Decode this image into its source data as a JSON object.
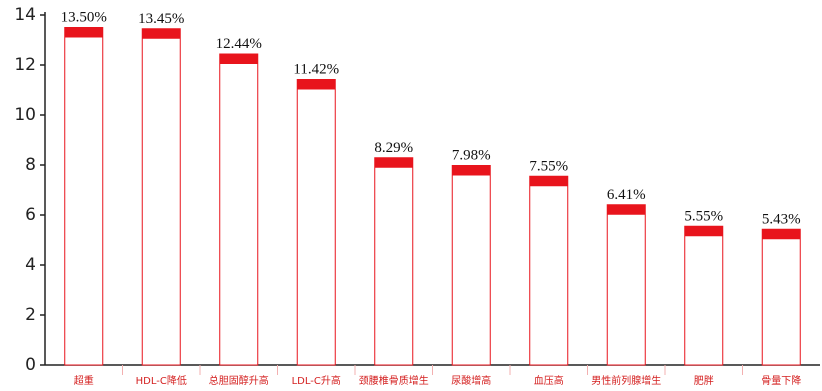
{
  "chart_data": {
    "type": "bar",
    "categories": [
      "超重",
      "HDL-C降低",
      "总胆固醇升高",
      "LDL-C升高",
      "颈腰椎骨质增生",
      "尿酸增高",
      "血压高",
      "男性前列腺增生",
      "肥胖",
      "骨量下降"
    ],
    "values": [
      13.5,
      13.45,
      12.44,
      11.42,
      8.29,
      7.98,
      7.55,
      6.41,
      5.55,
      5.43
    ],
    "value_labels": [
      "13.50%",
      "13.45%",
      "12.44%",
      "11.42%",
      "8.29%",
      "7.98%",
      "7.55%",
      "6.41%",
      "5.55%",
      "5.43%"
    ],
    "color": "#e8141c",
    "ylim": [
      0,
      14
    ],
    "yticks": [
      0,
      2,
      4,
      6,
      8,
      10,
      12,
      14
    ]
  }
}
